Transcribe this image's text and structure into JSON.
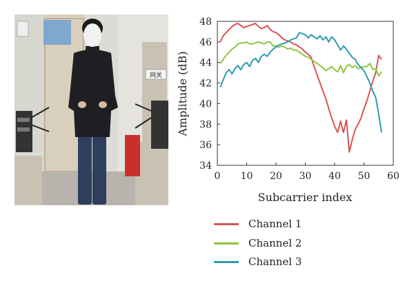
{
  "photo": {
    "colors": {
      "wall": "#dcdcd6",
      "floor": "#b8b4ad",
      "door": "#d8cfbc",
      "sweater": "#1f1f23",
      "jeans": "#2e3f5e",
      "face": "#f2f2f2",
      "hair": "#1a1a1a",
      "poster": "#7fa7cf",
      "red_box": "#c9302c",
      "desk": "#c9c2b2",
      "equipment": "#333333"
    },
    "sign_texts": [
      "网关"
    ]
  },
  "chart_data": {
    "type": "line",
    "xlabel": "Subcarrier index",
    "ylabel": "Amplitude (dB)",
    "xlim": [
      0,
      60
    ],
    "ylim": [
      34,
      48
    ],
    "xticks": [
      0,
      10,
      20,
      30,
      40,
      50,
      60
    ],
    "yticks": [
      34,
      36,
      38,
      40,
      42,
      44,
      46,
      48
    ],
    "grid": false,
    "legend_position": "below",
    "x": [
      1,
      2,
      3,
      4,
      5,
      6,
      7,
      8,
      9,
      10,
      11,
      12,
      13,
      14,
      15,
      16,
      17,
      18,
      19,
      20,
      21,
      22,
      23,
      24,
      25,
      26,
      27,
      28,
      29,
      30,
      31,
      32,
      33,
      34,
      35,
      36,
      37,
      38,
      39,
      40,
      41,
      42,
      43,
      44,
      45,
      46,
      47,
      48,
      49,
      50,
      51,
      52,
      53,
      54,
      55,
      56
    ],
    "series": [
      {
        "name": "Channel 1",
        "color": "#d9534f",
        "values": [
          46.0,
          46.6,
          46.9,
          47.2,
          47.5,
          47.7,
          47.8,
          47.6,
          47.4,
          47.5,
          47.6,
          47.7,
          47.8,
          47.5,
          47.3,
          47.4,
          47.6,
          47.2,
          47.0,
          46.9,
          46.7,
          46.4,
          46.2,
          46.1,
          46.0,
          45.8,
          45.7,
          45.5,
          45.3,
          45.0,
          44.8,
          44.5,
          43.6,
          42.8,
          42.0,
          41.2,
          40.5,
          39.5,
          38.6,
          37.8,
          37.2,
          38.3,
          37.2,
          38.4,
          35.3,
          36.5,
          37.5,
          38.0,
          38.6,
          39.5,
          40.3,
          41.2,
          42.2,
          43.0,
          44.7,
          44.3
        ]
      },
      {
        "name": "Channel 2",
        "color": "#8cc63f",
        "values": [
          43.9,
          44.3,
          44.7,
          45.0,
          45.3,
          45.5,
          45.8,
          45.9,
          45.9,
          46.0,
          45.8,
          45.8,
          45.9,
          46.0,
          45.9,
          45.8,
          46.0,
          46.0,
          45.6,
          45.6,
          45.5,
          45.6,
          45.5,
          45.3,
          45.4,
          45.2,
          45.2,
          45.0,
          44.8,
          44.6,
          44.5,
          44.3,
          44.1,
          43.9,
          43.7,
          43.5,
          43.2,
          43.4,
          43.6,
          43.3,
          43.1,
          43.7,
          43.0,
          43.6,
          43.8,
          43.5,
          43.7,
          43.4,
          43.5,
          43.6,
          43.6,
          43.9,
          43.3,
          43.4,
          42.7,
          43.1
        ]
      },
      {
        "name": "Channel 3",
        "color": "#2a9bb0",
        "values": [
          41.6,
          42.3,
          43.0,
          43.3,
          42.9,
          43.4,
          43.7,
          43.3,
          43.8,
          44.0,
          43.6,
          44.2,
          44.4,
          44.0,
          44.6,
          44.8,
          44.6,
          45.0,
          45.3,
          45.5,
          45.7,
          45.8,
          45.9,
          46.0,
          46.2,
          46.3,
          46.4,
          46.9,
          46.8,
          46.7,
          46.4,
          46.7,
          46.5,
          46.3,
          46.6,
          46.2,
          46.5,
          46.0,
          46.5,
          46.2,
          45.7,
          45.2,
          45.6,
          45.3,
          44.9,
          44.5,
          44.3,
          43.8,
          43.5,
          43.2,
          42.6,
          42.0,
          41.2,
          40.6,
          39.0,
          37.2
        ]
      }
    ]
  },
  "legend_label_1": "Channel 1",
  "legend_label_2": "Channel 2",
  "legend_label_3": "Channel 3"
}
